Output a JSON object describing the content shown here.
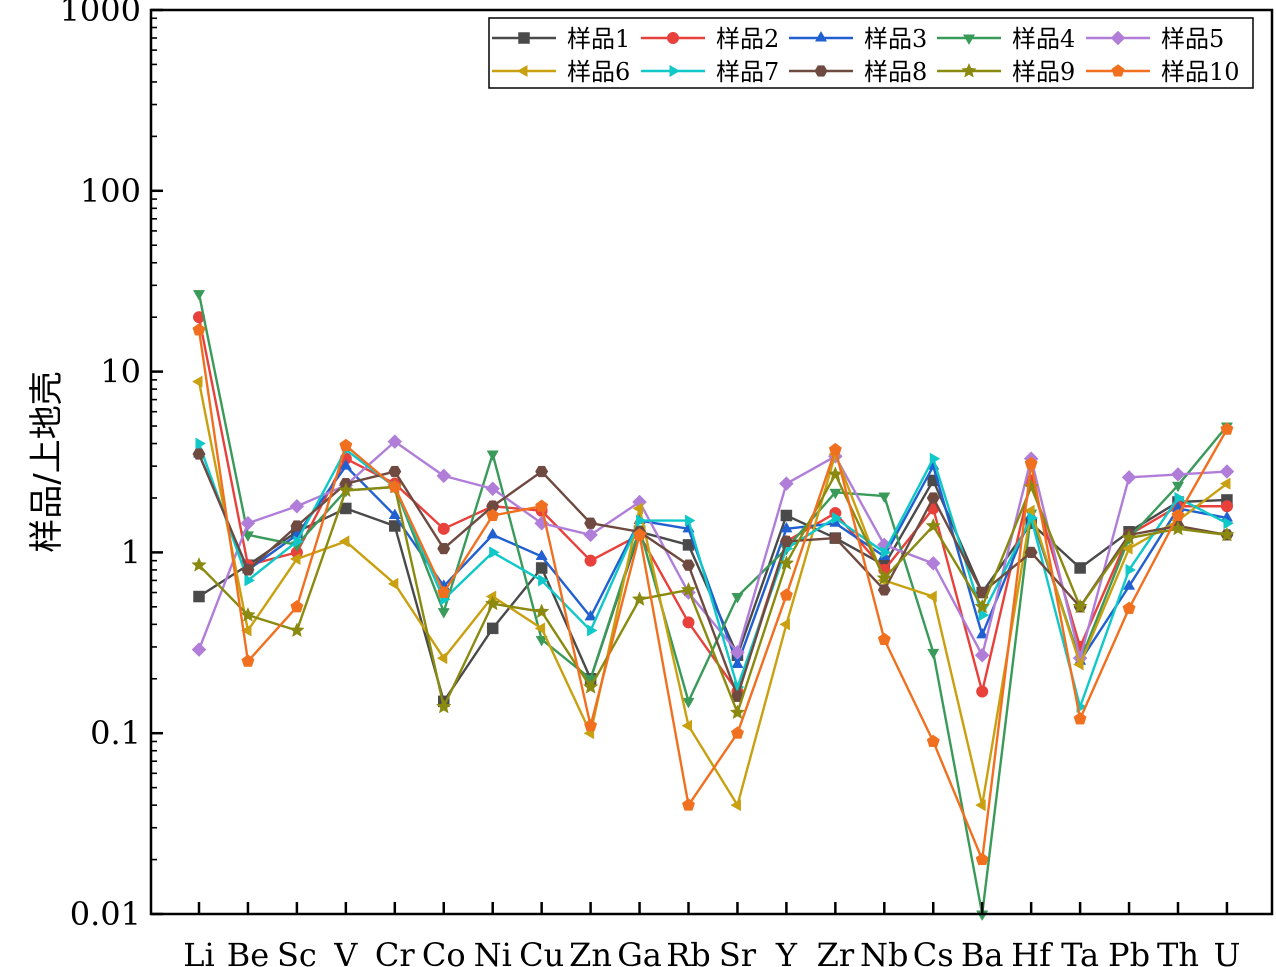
{
  "chart_data": {
    "type": "line",
    "title": "",
    "xlabel": "",
    "ylabel": "样品/上地壳",
    "yscale": "log",
    "ylim": [
      0.01,
      1000
    ],
    "ytick_labels": [
      "0.01",
      "0.1",
      "1",
      "10",
      "100",
      "1000"
    ],
    "categories": [
      "Li",
      "Be",
      "Sc",
      "V",
      "Cr",
      "Co",
      "Ni",
      "Cu",
      "Zn",
      "Ga",
      "Rb",
      "Sr",
      "Y",
      "Zr",
      "Nb",
      "Cs",
      "Ba",
      "Hf",
      "Ta",
      "Pb",
      "Th",
      "U"
    ],
    "legend_position": "top-right",
    "series": [
      {
        "name": "样品1",
        "color": "#4a4a4a",
        "marker": "square",
        "values": [
          0.57,
          0.85,
          1.3,
          1.75,
          1.4,
          0.15,
          0.38,
          0.82,
          0.2,
          1.3,
          1.1,
          0.27,
          1.6,
          1.2,
          0.85,
          2.5,
          0.6,
          1.45,
          0.82,
          1.3,
          1.9,
          1.95
        ]
      },
      {
        "name": "样品2",
        "color": "#e8413c",
        "marker": "circle",
        "values": [
          20,
          0.85,
          1.0,
          3.3,
          2.4,
          1.35,
          1.8,
          1.7,
          0.9,
          1.25,
          0.41,
          0.17,
          1.15,
          1.65,
          0.8,
          1.75,
          0.17,
          2.5,
          0.3,
          1.25,
          1.8,
          1.8
        ]
      },
      {
        "name": "样品3",
        "color": "#2060d0",
        "marker": "triangle-up",
        "values": [
          3.5,
          0.8,
          1.25,
          3.0,
          1.6,
          0.65,
          1.25,
          0.95,
          0.44,
          1.5,
          1.35,
          0.24,
          1.35,
          1.45,
          0.95,
          3.0,
          0.35,
          1.6,
          0.25,
          0.65,
          1.75,
          1.55
        ]
      },
      {
        "name": "样品4",
        "color": "#3a9a5a",
        "marker": "triangle-down",
        "values": [
          27,
          1.25,
          1.1,
          2.2,
          2.3,
          0.47,
          3.5,
          0.33,
          0.2,
          1.35,
          0.15,
          0.57,
          1.05,
          2.15,
          2.05,
          0.28,
          0.01,
          1.65,
          0.25,
          1.2,
          2.35,
          5.0
        ]
      },
      {
        "name": "样品5",
        "color": "#b07ed8",
        "marker": "diamond",
        "values": [
          0.29,
          1.45,
          1.8,
          2.35,
          4.1,
          2.65,
          2.25,
          1.45,
          1.25,
          1.9,
          0.6,
          0.28,
          2.4,
          3.4,
          1.1,
          0.87,
          0.27,
          3.3,
          0.26,
          2.6,
          2.7,
          2.8
        ]
      },
      {
        "name": "样品6",
        "color": "#c8a010",
        "marker": "triangle-left",
        "values": [
          8.8,
          0.37,
          0.92,
          1.15,
          0.67,
          0.26,
          0.57,
          0.38,
          0.1,
          1.75,
          0.11,
          0.04,
          0.4,
          3.5,
          0.7,
          0.57,
          0.04,
          1.7,
          0.24,
          1.05,
          1.5,
          2.4
        ]
      },
      {
        "name": "样品7",
        "color": "#10c8c8",
        "marker": "triangle-right",
        "values": [
          4.0,
          0.7,
          1.15,
          3.7,
          2.3,
          0.55,
          1.0,
          0.7,
          0.37,
          1.5,
          1.5,
          0.18,
          1.05,
          1.55,
          1.0,
          3.3,
          0.45,
          1.55,
          0.14,
          0.8,
          2.0,
          1.45
        ]
      },
      {
        "name": "样品8",
        "color": "#6e4a40",
        "marker": "hexagon",
        "values": [
          3.5,
          0.8,
          1.4,
          2.4,
          2.8,
          1.05,
          1.8,
          2.8,
          1.45,
          1.3,
          0.85,
          0.16,
          1.15,
          1.2,
          0.62,
          2.0,
          0.6,
          1.0,
          0.5,
          1.25,
          1.4,
          1.25
        ]
      },
      {
        "name": "样品9",
        "color": "#8a8a10",
        "marker": "star",
        "values": [
          0.85,
          0.45,
          0.37,
          2.2,
          2.3,
          0.14,
          0.52,
          0.47,
          0.18,
          0.55,
          0.62,
          0.13,
          0.87,
          2.7,
          0.72,
          1.4,
          0.5,
          2.3,
          0.5,
          1.2,
          1.35,
          1.25
        ]
      },
      {
        "name": "样品10",
        "color": "#f07020",
        "marker": "pentagon",
        "values": [
          17,
          0.25,
          0.5,
          3.9,
          2.3,
          0.6,
          1.6,
          1.8,
          0.11,
          1.25,
          0.04,
          0.1,
          0.58,
          3.7,
          0.33,
          0.09,
          0.02,
          3.1,
          0.12,
          0.49,
          1.6,
          4.8
        ]
      }
    ]
  }
}
